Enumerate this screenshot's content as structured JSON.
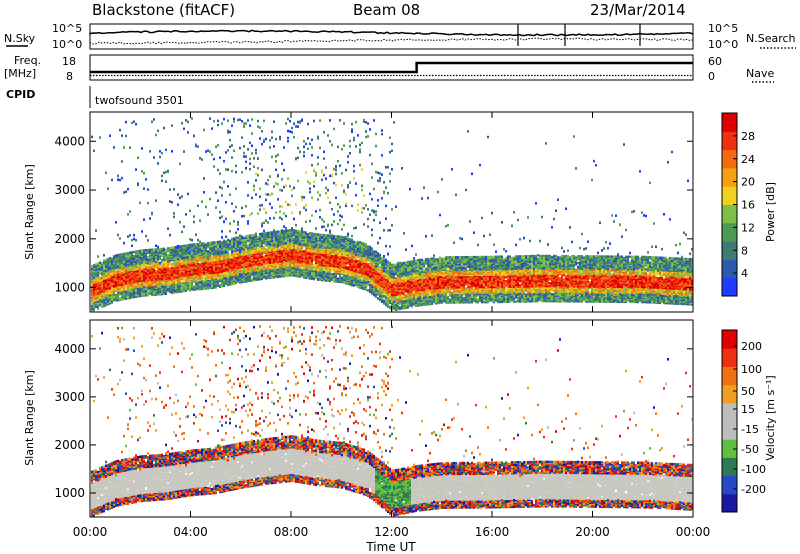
{
  "header": {
    "station": "Blackstone (fitACF)",
    "beam": "Beam 08",
    "date": "23/Mar/2014"
  },
  "params": {
    "nsky_label": "N.Sky",
    "nsearch_label": "N.Search",
    "noise_ticks_left": [
      "10^5",
      "10^0"
    ],
    "noise_ticks_right": [
      "10^5",
      "10^0"
    ],
    "freq_label": "Freq.",
    "freq_unit": "[MHz]",
    "freq_ticks": [
      "18",
      "8"
    ],
    "nave_label": "Nave",
    "nave_ticks": [
      "60",
      "0"
    ],
    "cpid_label": "CPID",
    "cpid_value": "twofsound 3501"
  },
  "chart_data": [
    {
      "type": "heatmap",
      "name": "power",
      "ylabel": "Slant Range [km]",
      "yticks": [
        "1000",
        "2000",
        "3000",
        "4000"
      ],
      "ylim": [
        500,
        4600
      ],
      "xlim": [
        0,
        24
      ],
      "colorbar": {
        "label": "Power [dB]",
        "ticks": [
          "4",
          "8",
          "12",
          "16",
          "20",
          "24",
          "28"
        ],
        "range": [
          0,
          32
        ],
        "colors": [
          "#1f3cff",
          "#2e58b0",
          "#3f7a76",
          "#4c9a55",
          "#7cc046",
          "#f0d020",
          "#f5a010",
          "#f36a10",
          "#ee3010",
          "#e00000"
        ]
      },
      "main_echo_range_km": [
        [
          0,
          950
        ],
        [
          1,
          1180
        ],
        [
          2,
          1280
        ],
        [
          3,
          1320
        ],
        [
          4,
          1400
        ],
        [
          5,
          1450
        ],
        [
          6,
          1560
        ],
        [
          7,
          1640
        ],
        [
          8,
          1700
        ],
        [
          9,
          1610
        ],
        [
          10,
          1560
        ],
        [
          11,
          1400
        ],
        [
          12,
          980
        ],
        [
          13,
          1080
        ],
        [
          14,
          1140
        ],
        [
          16,
          1150
        ],
        [
          18,
          1170
        ],
        [
          20,
          1160
        ],
        [
          22,
          1150
        ],
        [
          24,
          1100
        ]
      ]
    },
    {
      "type": "heatmap",
      "name": "velocity",
      "ylabel": "Slant Range [km]",
      "yticks": [
        "1000",
        "2000",
        "3000",
        "4000"
      ],
      "ylim": [
        500,
        4600
      ],
      "xlim": [
        0,
        24
      ],
      "colorbar": {
        "label": "Velocity [m s⁻¹]",
        "ticks": [
          "200",
          "100",
          "50",
          "15",
          "-15",
          "-50",
          "-100",
          "-200"
        ],
        "colors": [
          "#1a1aa0",
          "#2848c8",
          "#2f7a55",
          "#5fc040",
          "#bdbdbd",
          "#bdbdbd",
          "#f0a020",
          "#f07010",
          "#ef3010",
          "#e00000"
        ]
      }
    }
  ],
  "xaxis": {
    "ticks": [
      "00:00",
      "04:00",
      "08:00",
      "12:00",
      "16:00",
      "20:00",
      "00:00"
    ],
    "label": "Time UT"
  }
}
